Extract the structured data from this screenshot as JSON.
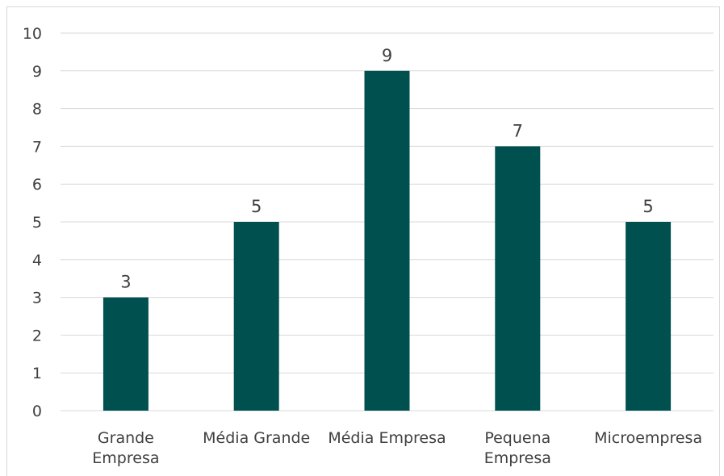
{
  "chart_data": {
    "type": "bar",
    "categories": [
      [
        "Grande",
        "Empresa"
      ],
      [
        "Média Grande"
      ],
      [
        "Média Empresa"
      ],
      [
        "Pequena",
        "Empresa"
      ],
      [
        "Microempresa"
      ]
    ],
    "values": [
      3,
      5,
      9,
      7,
      5
    ],
    "title": "",
    "xlabel": "",
    "ylabel": "",
    "ylim": [
      0,
      10
    ],
    "yticks": [
      "0",
      "1",
      "2",
      "3",
      "4",
      "5",
      "6",
      "7",
      "8",
      "9",
      "10"
    ],
    "grid": true,
    "data_labels": true,
    "bar_color": "#005050",
    "grid_color": "#d9d9d9"
  }
}
